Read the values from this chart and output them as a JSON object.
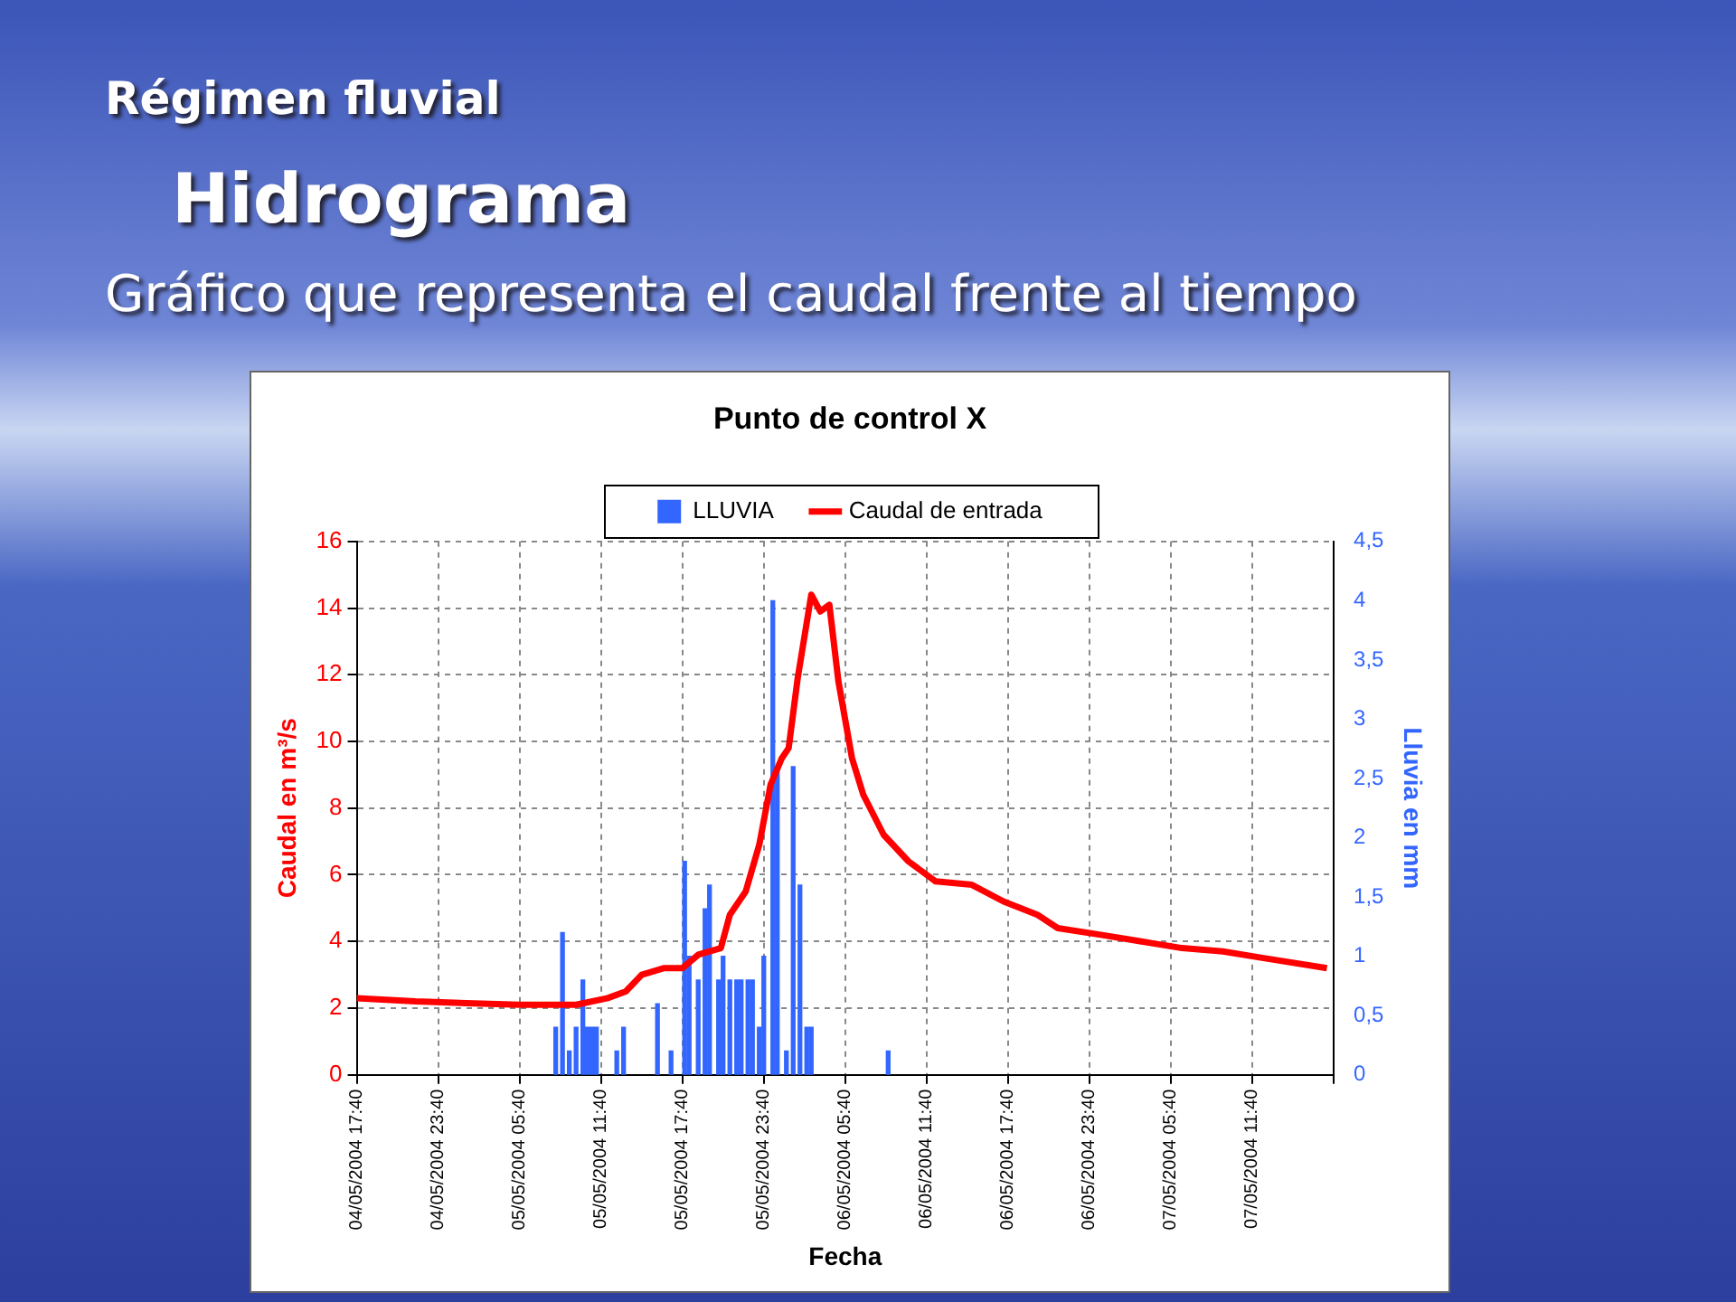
{
  "chart_data": {
    "type": "line",
    "title": "Punto de control X",
    "xlabel": "Fecha",
    "ylabel": "Caudal en m³/s",
    "y2label": "Lluvia en mm",
    "annotations": [
      "Régimen fluvial",
      "Hidrograma",
      "Gráfico que representa el caudal frente al tiempo"
    ],
    "xlim": [
      "2004-05-04T17:40",
      "2004-05-07T17:40"
    ],
    "xticks": [
      {
        "value": "2004-05-04T17:40",
        "label": "04/05/2004 17:40"
      },
      {
        "value": "2004-05-04T23:40",
        "label": "04/05/2004 23:40"
      },
      {
        "value": "2004-05-05T05:40",
        "label": "05/05/2004 05:40"
      },
      {
        "value": "2004-05-05T11:40",
        "label": "05/05/2004 11:40"
      },
      {
        "value": "2004-05-05T17:40",
        "label": "05/05/2004 17:40"
      },
      {
        "value": "2004-05-05T23:40",
        "label": "05/05/2004 23:40"
      },
      {
        "value": "2004-05-06T05:40",
        "label": "06/05/2004 05:40"
      },
      {
        "value": "2004-05-06T11:40",
        "label": "06/05/2004 11:40"
      },
      {
        "value": "2004-05-06T17:40",
        "label": "06/05/2004 17:40"
      },
      {
        "value": "2004-05-06T23:40",
        "label": "06/05/2004 23:40"
      },
      {
        "value": "2004-05-07T05:40",
        "label": "07/05/2004 05:40"
      },
      {
        "value": "2004-05-07T11:40",
        "label": "07/05/2004 11:40"
      },
      {
        "value": "2004-05-07T17:40",
        "label": null
      }
    ],
    "ylim": [
      0,
      16
    ],
    "yticks": [
      0,
      2,
      4,
      6,
      8,
      10,
      12,
      14,
      16
    ],
    "y2lim": [
      0,
      4.5
    ],
    "y2ticks": [
      0,
      {
        "value": 0.5,
        "label": "0,5"
      },
      1,
      {
        "value": 1.5,
        "label": "1,5"
      },
      2,
      {
        "value": 2.5,
        "label": "2,5"
      },
      3,
      {
        "value": 3.5,
        "label": "3,5"
      },
      4,
      {
        "value": 4.5,
        "label": "4,5"
      }
    ],
    "grid": true,
    "legend": "top",
    "marker": "none",
    "line_style": "solid",
    "series": [
      {
        "name": "LLUVIA",
        "type": "bar",
        "axis": "y2",
        "color": "#3366ff",
        "x": [
          "2004-05-05T08:20",
          "2004-05-05T08:50",
          "2004-05-05T09:20",
          "2004-05-05T09:50",
          "2004-05-05T10:20",
          "2004-05-05T10:40",
          "2004-05-05T11:00",
          "2004-05-05T11:20",
          "2004-05-05T12:50",
          "2004-05-05T13:20",
          "2004-05-05T15:50",
          "2004-05-05T16:50",
          "2004-05-05T17:50",
          "2004-05-05T18:10",
          "2004-05-05T18:50",
          "2004-05-05T19:20",
          "2004-05-05T19:40",
          "2004-05-05T20:20",
          "2004-05-05T20:40",
          "2004-05-05T21:10",
          "2004-05-05T21:40",
          "2004-05-05T22:00",
          "2004-05-05T22:30",
          "2004-05-05T22:50",
          "2004-05-05T23:20",
          "2004-05-05T23:40",
          "2004-05-06T00:20",
          "2004-05-06T00:40",
          "2004-05-06T01:20",
          "2004-05-06T01:50",
          "2004-05-06T02:20",
          "2004-05-06T02:50",
          "2004-05-06T03:10",
          "2004-05-06T08:50"
        ],
        "values": [
          0.4,
          1.2,
          0.2,
          0.4,
          0.8,
          0.4,
          0.4,
          0.4,
          0.2,
          0.4,
          0.6,
          0.2,
          1.8,
          1.0,
          0.8,
          1.4,
          1.6,
          0.8,
          1.0,
          0.8,
          0.8,
          0.8,
          0.8,
          0.8,
          0.4,
          1.0,
          4.0,
          2.6,
          0.2,
          2.6,
          1.6,
          0.4,
          0.4,
          0.2
        ]
      },
      {
        "name": "Caudal de entrada",
        "color": "#ff0000",
        "x": [
          "2004-05-04T17:40",
          "2004-05-04T22:00",
          "2004-05-05T05:40",
          "2004-05-05T09:50",
          "2004-05-05T12:10",
          "2004-05-05T13:30",
          "2004-05-05T14:40",
          "2004-05-05T16:20",
          "2004-05-05T17:40",
          "2004-05-05T18:50",
          "2004-05-05T20:30",
          "2004-05-05T21:10",
          "2004-05-05T22:20",
          "2004-05-05T23:20",
          "2004-05-06T00:10",
          "2004-05-06T01:00",
          "2004-05-06T01:30",
          "2004-05-06T02:10",
          "2004-05-06T03:10",
          "2004-05-06T03:50",
          "2004-05-06T04:30",
          "2004-05-06T05:10",
          "2004-05-06T06:10",
          "2004-05-06T07:00",
          "2004-05-06T08:30",
          "2004-05-06T10:20",
          "2004-05-06T12:20",
          "2004-05-06T15:00",
          "2004-05-06T17:20",
          "2004-05-06T19:50",
          "2004-05-06T21:20",
          "2004-05-07T00:30",
          "2004-05-07T03:30",
          "2004-05-07T06:30",
          "2004-05-07T09:30",
          "2004-05-07T12:30",
          "2004-05-07T17:10"
        ],
        "values": [
          2.3,
          2.2,
          2.1,
          2.1,
          2.3,
          2.5,
          3.0,
          3.2,
          3.2,
          3.6,
          3.8,
          4.8,
          5.5,
          6.9,
          8.7,
          9.5,
          9.8,
          11.9,
          14.4,
          13.9,
          14.1,
          11.8,
          9.5,
          8.4,
          7.2,
          6.4,
          5.8,
          5.7,
          5.2,
          4.8,
          4.4,
          4.2,
          4.0,
          3.8,
          3.7,
          3.5,
          3.2
        ]
      }
    ]
  }
}
